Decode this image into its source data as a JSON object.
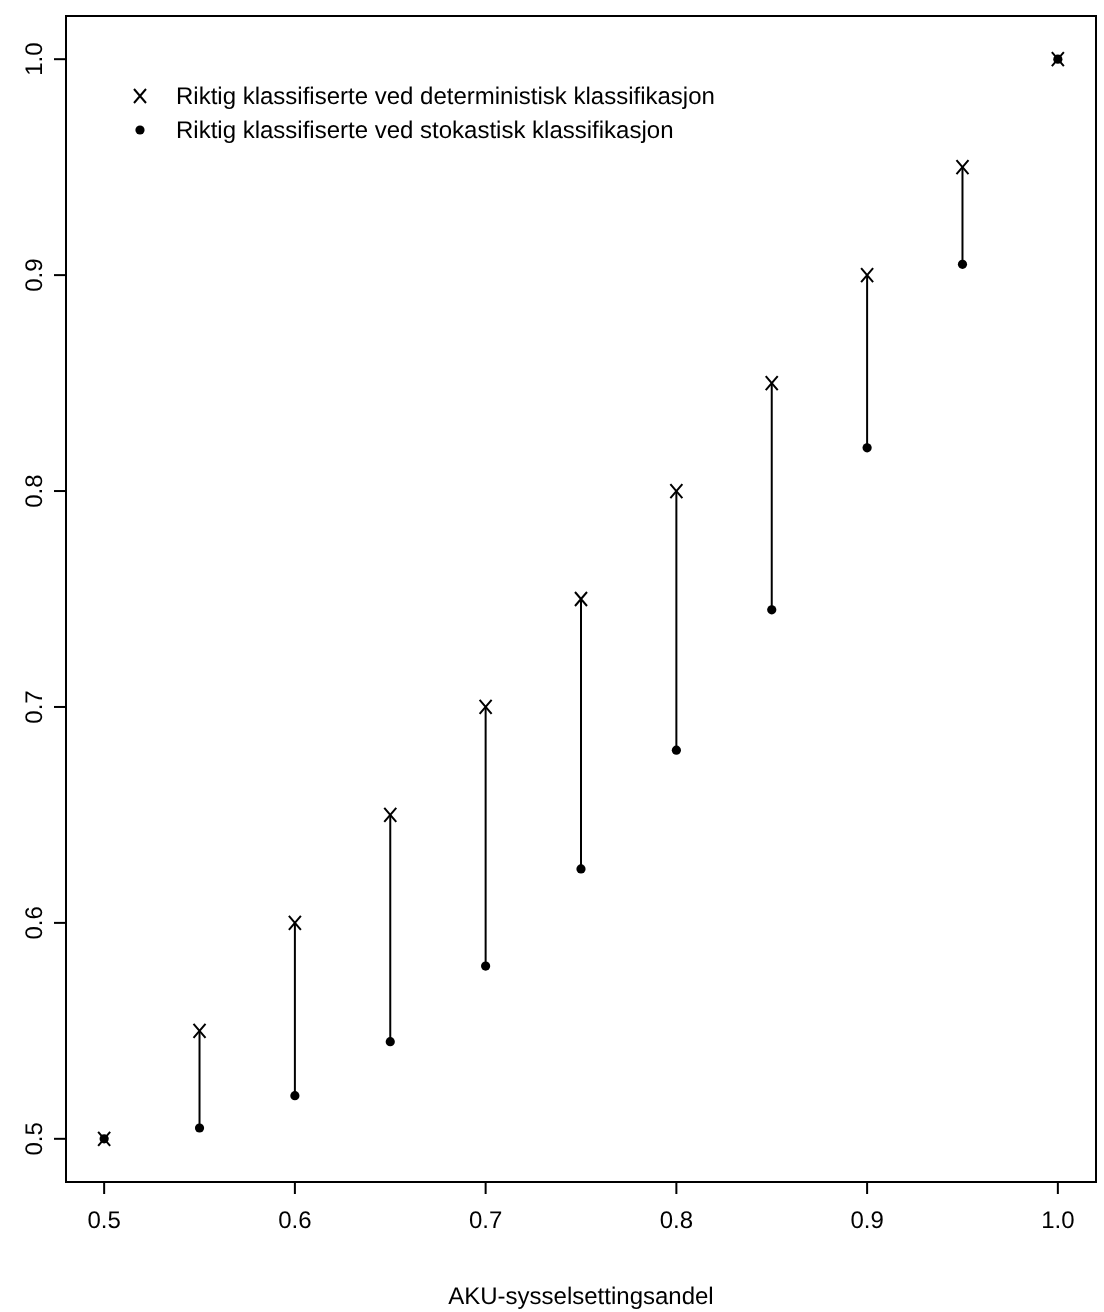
{
  "chart_data": {
    "type": "scatter",
    "xlabel": "AKU-sysselsettingsandel",
    "x": [
      0.5,
      0.55,
      0.6,
      0.65,
      0.7,
      0.75,
      0.8,
      0.85,
      0.9,
      0.95,
      1.0
    ],
    "series": [
      {
        "name": "Riktig klassifiserte ved deterministisk klassifikasjon",
        "color": "#000000",
        "marker": "cross",
        "values": [
          0.5,
          0.55,
          0.6,
          0.65,
          0.7,
          0.75,
          0.8,
          0.85,
          0.9,
          0.95,
          1.0
        ],
        "errors": [
          null,
          [
            0.505,
            0.55
          ],
          [
            0.52,
            0.6
          ],
          [
            0.545,
            0.65
          ],
          [
            0.58,
            0.7
          ],
          [
            0.625,
            0.75
          ],
          [
            0.68,
            0.8
          ],
          [
            0.745,
            0.85
          ],
          [
            0.82,
            0.9
          ],
          [
            0.905,
            0.95
          ],
          null
        ]
      },
      {
        "name": "Riktig klassifiserte ved stokastisk klassifikasjon",
        "color": "#000000",
        "marker": "circle",
        "values": [
          0.5,
          0.505,
          0.52,
          0.545,
          0.58,
          0.625,
          0.68,
          0.745,
          0.82,
          0.905,
          1.0
        ]
      }
    ],
    "xlim": [
      0.48,
      1.02
    ],
    "ylim": [
      0.48,
      1.02
    ],
    "xticks": [
      0.5,
      0.6,
      0.7,
      0.8,
      0.9,
      {
        "value": 1,
        "label": "1.0"
      }
    ],
    "yticks": [
      0.5,
      0.6,
      0.7,
      0.8,
      0.9,
      {
        "value": 1,
        "label": "1.0"
      }
    ],
    "legend": "top left",
    "grid": false
  }
}
